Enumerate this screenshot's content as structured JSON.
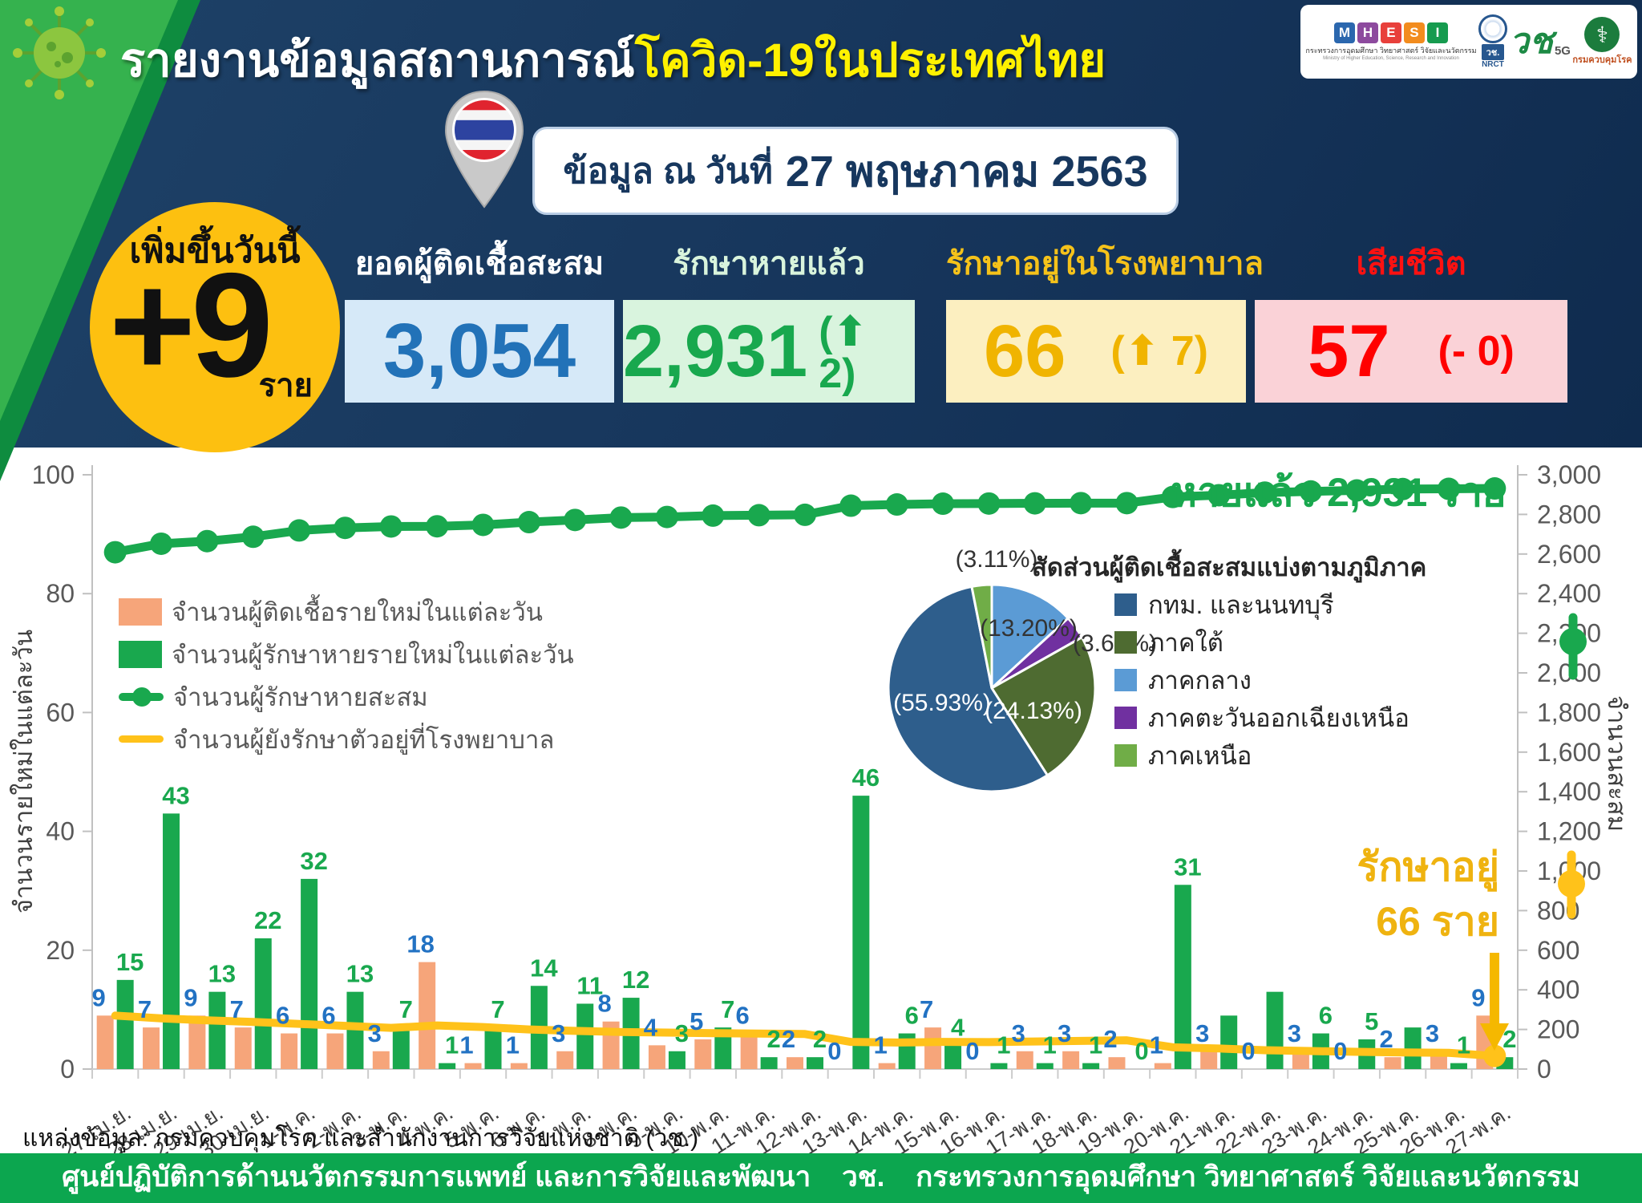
{
  "header": {
    "title_white": "รายงานข้อมูลสถานการณ์",
    "title_yellow": "โควิด-19ในประเทศไทย",
    "date_label": "ข้อมูล ณ วันที่",
    "date_value": "27 พฤษภาคม 2563",
    "logos": {
      "mhesi_letters": [
        "M",
        "H",
        "E",
        "S",
        "I"
      ],
      "mhesi_thai": "กระทรวงการอุดมศึกษา วิทยาศาสตร์ วิจัยและนวัตกรรม",
      "mhesi_eng": "Ministry of Higher Education, Science, Research and Innovation",
      "nrct_thai": "วช.",
      "nrct_eng": "NRCT",
      "wor_script": "วช",
      "wor_5g": "5G",
      "ddc_name": "กรมควบคุมโรค",
      "ddc_symbol": "⚕"
    }
  },
  "daily_badge": {
    "title": "เพิ่มขึ้นวันนี้",
    "value": "+9",
    "unit": "ราย"
  },
  "stat_cards": [
    {
      "label": "ยอดผู้ติดเชื้อสะสม",
      "value": "3,054",
      "delta": ""
    },
    {
      "label": "รักษาหายแล้ว",
      "value": "2,931",
      "delta": "(⬆ 2)"
    },
    {
      "label": "รักษาอยู่ในโรงพยาบาล",
      "value": "66",
      "delta": "(⬆ 7)"
    },
    {
      "label": "เสียชีวิต",
      "value": "57",
      "delta": "(- 0)"
    }
  ],
  "annotations": {
    "recovered_note": "หายแล้ว 2,931 ราย",
    "hospital_note_line1": "รักษาอยู่",
    "hospital_note_line2": "66 ราย"
  },
  "chart_data": [
    {
      "type": "bar",
      "title": "",
      "categories": [
        "27-เม.ย.",
        "28-เม.ย.",
        "29-เม.ย.",
        "30-เม.ย.",
        "1-พ.ค.",
        "2-พ.ค.",
        "3-พ.ค.",
        "4-พ.ค.",
        "5-พ.ค.",
        "6-พ.ค.",
        "7-พ.ค.",
        "8-พ.ค.",
        "9-พ.ค.",
        "10-พ.ค.",
        "11-พ.ค.",
        "12-พ.ค.",
        "13-พ.ค.",
        "14-พ.ค.",
        "15-พ.ค.",
        "16-พ.ค.",
        "17-พ.ค.",
        "18-พ.ค.",
        "19-พ.ค.",
        "20-พ.ค.",
        "21-พ.ค.",
        "22-พ.ค.",
        "23-พ.ค.",
        "24-พ.ค.",
        "25-พ.ค.",
        "26-พ.ค.",
        "27-พ.ค."
      ],
      "series": [
        {
          "name": "จำนวนผู้ติดเชื้อรายใหม่ในแต่ละวัน",
          "type": "bar",
          "axis": "left",
          "color": "#F6A57A",
          "label_color": "#2272C3",
          "values": [
            9,
            7,
            9,
            7,
            6,
            6,
            3,
            18,
            1,
            1,
            3,
            8,
            4,
            5,
            6,
            2,
            0,
            1,
            7,
            0,
            3,
            3,
            2,
            1,
            3,
            0,
            3,
            0,
            2,
            3,
            9
          ]
        },
        {
          "name": "จำนวนผู้รักษาหายรายใหม่ในแต่ละวัน",
          "type": "bar",
          "axis": "left",
          "color": "#19A84E",
          "label_color": "#19A84E",
          "values": [
            15,
            43,
            13,
            22,
            32,
            13,
            7,
            1,
            7,
            14,
            11,
            12,
            3,
            7,
            2,
            2,
            46,
            6,
            4,
            1,
            1,
            1,
            0,
            31,
            9,
            13,
            6,
            5,
            7,
            1,
            2
          ],
          "hidden_label_indices": [
            24,
            25,
            28
          ]
        },
        {
          "name": "จำนวนผู้รักษาหายสะสม",
          "type": "line-dots",
          "axis": "right",
          "color": "#19A84E",
          "values": [
            2609,
            2652,
            2665,
            2687,
            2719,
            2732,
            2739,
            2740,
            2747,
            2761,
            2772,
            2784,
            2787,
            2794,
            2796,
            2798,
            2844,
            2850,
            2854,
            2855,
            2856,
            2857,
            2857,
            2888,
            2897,
            2910,
            2916,
            2921,
            2928,
            2929,
            2931
          ]
        },
        {
          "name": "จำนวนผู้ยังรักษาตัวอยู่ที่โรงพยาบาล",
          "type": "line",
          "axis": "right",
          "color": "#FFC21A",
          "values": [
            270,
            256,
            246,
            238,
            228,
            218,
            208,
            220,
            212,
            200,
            193,
            187,
            184,
            181,
            179,
            177,
            137,
            134,
            137,
            136,
            139,
            142,
            145,
            110,
            104,
            95,
            91,
            87,
            84,
            82,
            66
          ]
        }
      ],
      "left_axis": {
        "min": 0,
        "max": 100,
        "step": 20,
        "label": "จำนวนรายใหม่ในแต่ละวัน"
      },
      "right_axis": {
        "min": 0,
        "max": 3000,
        "step": 200,
        "label": "จำนวนสะสม"
      },
      "grid": false,
      "legend_position": "upper-left-inside"
    },
    {
      "type": "pie",
      "title": "สัดส่วนผู้ติดเชื้อสะสมแบ่งตามภูมิภาค",
      "slices": [
        {
          "label": "กทม. และนนทบุรี",
          "pct": 55.93,
          "color": "#2E5E8C"
        },
        {
          "label": "ภาคใต้",
          "pct": 24.13,
          "color": "#4E6B31"
        },
        {
          "label": "ภาคกลาง",
          "pct": 13.2,
          "color": "#5B9BD5"
        },
        {
          "label": "ภาคตะวันออกเฉียงเหนือ",
          "pct": 3.63,
          "color": "#7030A0"
        },
        {
          "label": "ภาคเหนือ",
          "pct": 3.11,
          "color": "#70AD47"
        }
      ],
      "draw_order_clockwise_from_top": [
        2,
        3,
        1,
        0,
        4
      ]
    }
  ],
  "source_line": "แหล่งข้อมูล: กรมควบคุมโรค และสำนักงานการวิจัยแห่งชาติ (วช.)",
  "footer": "ศูนย์ปฏิบัติการด้านนวัตกรรมการแพทย์ และการวิจัยและพัฒนา    วช.    กระทรวงการอุดมศึกษา วิทยาศาสตร์ วิจัยและนวัตกรรม"
}
